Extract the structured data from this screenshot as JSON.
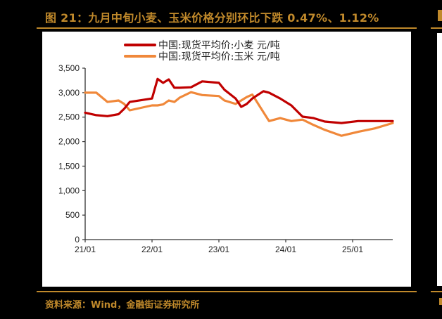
{
  "figure": {
    "title": "图 21：九月中旬小麦、玉米价格分别环比下跌 0.47%、1.12%",
    "source": "资料来源：Wind，金融街证券研究所"
  },
  "colors": {
    "accent_gold": "#c0892b",
    "wheat": "#c00000",
    "corn": "#f0883a",
    "background": "#000000",
    "panel": "#ffffff"
  },
  "chart_data": {
    "type": "line",
    "title": "",
    "xlabel": "",
    "ylabel": "",
    "ylim": [
      0,
      3500
    ],
    "yticks": [
      0,
      500,
      1000,
      1500,
      2000,
      2500,
      3000,
      3500
    ],
    "ytick_labels": [
      "0",
      "500",
      "1,000",
      "1,500",
      "2,000",
      "2,500",
      "3,000",
      "3,500"
    ],
    "xtick_labels": [
      "21/01",
      "22/01",
      "23/01",
      "24/01",
      "25/01"
    ],
    "grid": false,
    "legend_position": "top-center",
    "x": [
      "21/01",
      "21/03",
      "21/05",
      "21/07",
      "21/08",
      "21/09",
      "22/01",
      "22/02",
      "22/03",
      "22/04",
      "22/05",
      "22/06",
      "22/08",
      "22/10",
      "23/01",
      "23/02",
      "23/04",
      "23/05",
      "23/06",
      "23/07",
      "23/09",
      "23/10",
      "23/12",
      "24/02",
      "24/04",
      "24/06",
      "24/08",
      "24/11",
      "25/02",
      "25/05",
      "25/09"
    ],
    "series": [
      {
        "name": "中国:现货平均价:小麦 元/吨",
        "color": "#c00000",
        "values": [
          2590,
          2540,
          2520,
          2560,
          2670,
          2810,
          2880,
          3280,
          3200,
          3270,
          3100,
          3100,
          3110,
          3230,
          3200,
          3060,
          2880,
          2710,
          2770,
          2880,
          3030,
          3000,
          2880,
          2740,
          2510,
          2480,
          2410,
          2380,
          2420,
          2420,
          2420
        ]
      },
      {
        "name": "中国:现货平均价:玉米 元/吨",
        "color": "#f0883a",
        "values": [
          3000,
          3000,
          2810,
          2840,
          2770,
          2640,
          2740,
          2740,
          2760,
          2840,
          2810,
          2900,
          3010,
          2950,
          2930,
          2840,
          2770,
          2840,
          2910,
          2960,
          2600,
          2420,
          2480,
          2420,
          2450,
          2340,
          2240,
          2120,
          2200,
          2270,
          2380
        ]
      }
    ]
  }
}
